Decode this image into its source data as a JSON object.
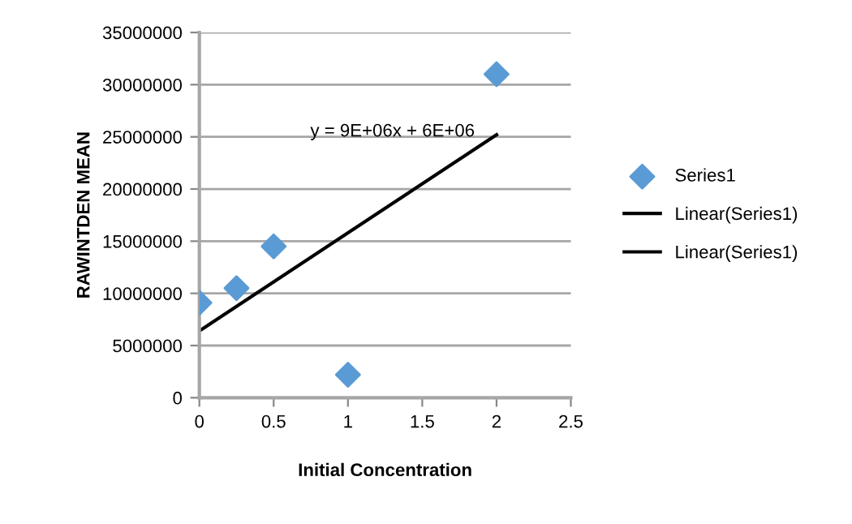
{
  "chart_data": {
    "type": "scatter",
    "xlabel": "Initial Concentration",
    "ylabel": "RAWINTDEN MEAN",
    "xlim": [
      0,
      2.5
    ],
    "xticks": [
      0,
      0.5,
      1,
      1.5,
      2,
      2.5
    ],
    "ylim": [
      0,
      35000000
    ],
    "yticks": [
      0,
      5000000,
      10000000,
      15000000,
      20000000,
      25000000,
      30000000,
      35000000
    ],
    "grid": "y",
    "legend": "right",
    "series": [
      {
        "name": "Series1",
        "marker": "diamond",
        "color": "#5b9bd5",
        "x": [
          0,
          0.25,
          0.5,
          1,
          2
        ],
        "values": [
          9100000,
          10500000,
          14500000,
          2200000,
          31000000
        ]
      },
      {
        "name": "Linear(Series1)",
        "type": "line",
        "color": "#000000",
        "x": [
          0,
          2
        ],
        "values": [
          6400000,
          25200000
        ]
      },
      {
        "name": "Linear(Series1)",
        "type": "line",
        "color": "#000000"
      }
    ],
    "annotations": [
      "y = 9E+06x + 6E+06"
    ]
  }
}
